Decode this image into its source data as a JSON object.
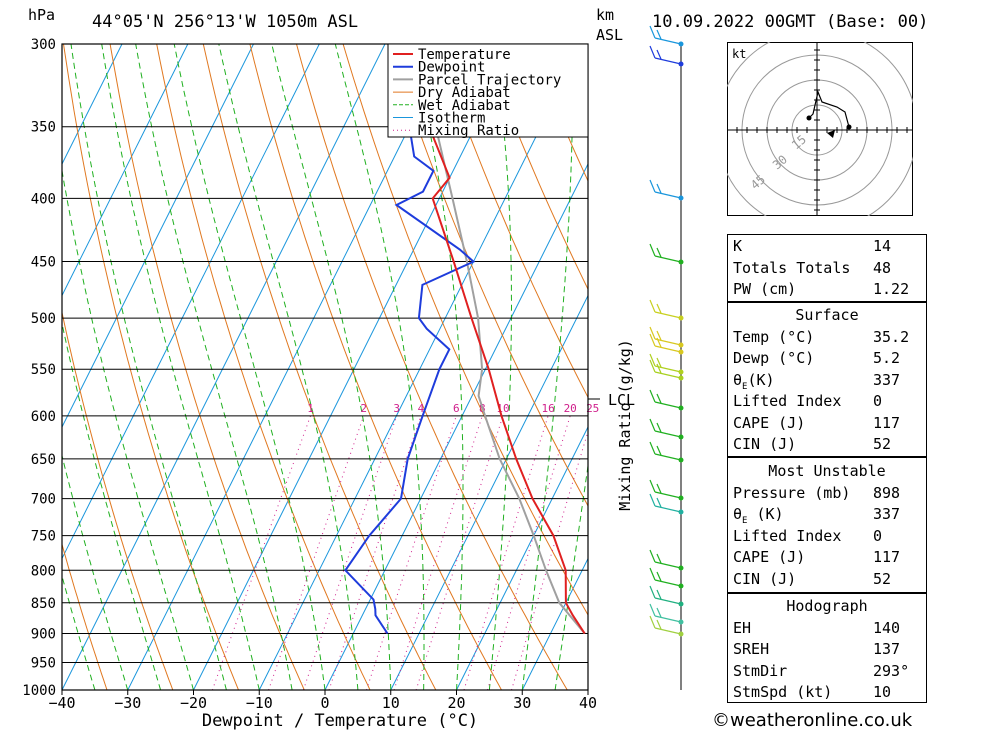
{
  "header": {
    "hpa_label": "hPa",
    "location": "44°05'N 256°13'W 1050m ASL",
    "km_label": "km",
    "asl_label": "ASL",
    "datetime": "10.09.2022 00GMT (Base: 00)"
  },
  "chart_data": {
    "type": "skew-t",
    "xlabel": "Dewpoint / Temperature (°C)",
    "ylabel_left": "hPa",
    "ylabel_right": "Mixing Ratio (g/kg)",
    "x_ticks": [
      -40,
      -30,
      -20,
      -10,
      0,
      10,
      20,
      30,
      40
    ],
    "pressure_levels": [
      300,
      350,
      400,
      450,
      500,
      550,
      600,
      650,
      700,
      750,
      800,
      850,
      900,
      950,
      1000
    ],
    "mixing_ratio_labels": [
      "1",
      "2",
      "3",
      "4",
      "6",
      "8",
      "10",
      "16",
      "20",
      "25"
    ],
    "mixing_ratio_values": [
      1,
      2,
      3,
      4,
      6,
      8,
      10,
      16,
      20,
      25
    ],
    "lcl_label": "LCL",
    "lcl_pressure": 578,
    "legend": [
      {
        "name": "Temperature",
        "color": "#e02020",
        "style": "solid"
      },
      {
        "name": "Dewpoint",
        "color": "#1e3cdc",
        "style": "solid"
      },
      {
        "name": "Parcel Trajectory",
        "color": "#a0a0a0",
        "style": "solid"
      },
      {
        "name": "Dry Adiabat",
        "color": "#e07820",
        "style": "solid"
      },
      {
        "name": "Wet Adiabat",
        "color": "#20b020",
        "style": "dashed"
      },
      {
        "name": "Isotherm",
        "color": "#1a96dc",
        "style": "solid"
      },
      {
        "name": "Mixing Ratio",
        "color": "#d0208c",
        "style": "dotted"
      }
    ],
    "temperature": [
      [
        900,
        35.2
      ],
      [
        870,
        32
      ],
      [
        850,
        30
      ],
      [
        800,
        27.5
      ],
      [
        750,
        23
      ],
      [
        700,
        17
      ],
      [
        650,
        11.5
      ],
      [
        600,
        6
      ],
      [
        550,
        0.5
      ],
      [
        500,
        -6
      ],
      [
        450,
        -13
      ],
      [
        400,
        -21
      ],
      [
        385,
        -20
      ],
      [
        350,
        -27
      ],
      [
        300,
        -37
      ]
    ],
    "dewpoint": [
      [
        900,
        5.2
      ],
      [
        870,
        2
      ],
      [
        860,
        1.5
      ],
      [
        845,
        0.5
      ],
      [
        800,
        -6
      ],
      [
        750,
        -5
      ],
      [
        700,
        -3
      ],
      [
        650,
        -5
      ],
      [
        600,
        -6
      ],
      [
        550,
        -7
      ],
      [
        530,
        -7
      ],
      [
        510,
        -12
      ],
      [
        500,
        -14
      ],
      [
        470,
        -16
      ],
      [
        450,
        -10
      ],
      [
        440,
        -13
      ],
      [
        405,
        -26
      ],
      [
        395,
        -23
      ],
      [
        380,
        -23
      ],
      [
        370,
        -27
      ],
      [
        350,
        -30
      ],
      [
        330,
        -29
      ],
      [
        310,
        -35
      ],
      [
        300,
        -38
      ]
    ],
    "parcel": [
      [
        900,
        35.2
      ],
      [
        850,
        29
      ],
      [
        800,
        24.5
      ],
      [
        750,
        20
      ],
      [
        700,
        15
      ],
      [
        650,
        9
      ],
      [
        600,
        3.5
      ],
      [
        578,
        1.0
      ],
      [
        550,
        -0.5
      ],
      [
        500,
        -5
      ],
      [
        450,
        -11
      ],
      [
        400,
        -18
      ],
      [
        350,
        -26
      ],
      [
        300,
        -36
      ]
    ]
  },
  "hodograph": {
    "unit_label": "kt",
    "ring_labels": [
      "15",
      "30",
      "45"
    ]
  },
  "indices": {
    "rows": [
      {
        "label": "K",
        "value": "14"
      },
      {
        "label": "Totals Totals",
        "value": "48"
      },
      {
        "label": "PW (cm)",
        "value": "1.22"
      }
    ]
  },
  "surface": {
    "title": "Surface",
    "temp_label": "Temp (°C)",
    "temp": "35.2",
    "dewp_label": "Dewp (°C)",
    "dewp": "5.2",
    "theta_label": "(K)",
    "theta": "337",
    "li_label": "Lifted Index",
    "li": "0",
    "cape_label": "CAPE (J)",
    "cape": "117",
    "cin_label": "CIN (J)",
    "cin": "52"
  },
  "most_unstable": {
    "title": "Most Unstable",
    "pressure_label": "Pressure (mb)",
    "pressure": "898",
    "theta_label": "(K)",
    "theta": "337",
    "li_label": "Lifted Index",
    "li": "0",
    "cape_label": "CAPE (J)",
    "cape": "117",
    "cin_label": "CIN (J)",
    "cin": "52"
  },
  "hodograph_table": {
    "title": "Hodograph",
    "eh_label": "EH",
    "eh": "140",
    "sreh_label": "SREH",
    "sreh": "137",
    "stmdir_label": "StmDir",
    "stmdir": "293°",
    "stmspd_label": "StmSpd (kt)",
    "stmspd": "10"
  },
  "footer": "©weatheronline.co.uk"
}
